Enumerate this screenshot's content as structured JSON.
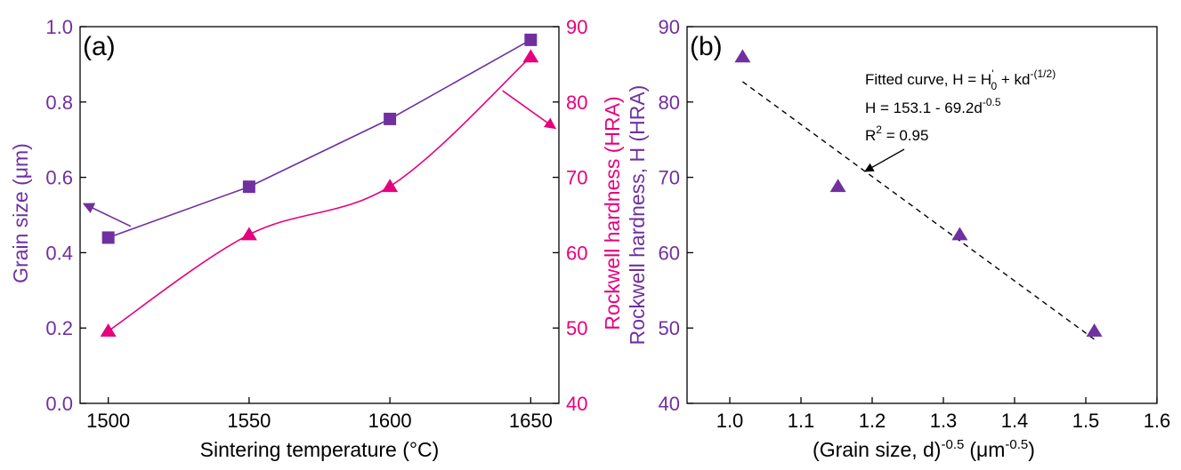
{
  "colors": {
    "purple": "#7030A0",
    "magenta": "#E6007E",
    "black": "#000000"
  },
  "chart_data": [
    {
      "panel": "(a)",
      "type": "line",
      "xlabel": "Sintering temperature (°C)",
      "ylabel_left": "Grain size (μm)",
      "ylabel_right": "Rockwell hardness (HRA)",
      "xlim": [
        1490,
        1660
      ],
      "ylim_left": [
        0.0,
        1.0
      ],
      "ylim_right": [
        40,
        90
      ],
      "x_ticks": [
        "1500",
        "1550",
        "1600",
        "1650"
      ],
      "y_left_ticks": [
        "0.0",
        "0.2",
        "0.4",
        "0.6",
        "0.8",
        "1.0"
      ],
      "y_right_ticks": [
        "40",
        "50",
        "60",
        "70",
        "80",
        "90"
      ],
      "grid": false,
      "series": [
        {
          "axis": "left",
          "marker": "square",
          "color": "#7030A0",
          "x": [
            1500,
            1550,
            1600,
            1650
          ],
          "y": [
            0.44,
            0.575,
            0.755,
            0.965
          ]
        },
        {
          "axis": "right",
          "marker": "triangle",
          "color": "#E6007E",
          "x": [
            1500,
            1550,
            1600,
            1650
          ],
          "y": [
            49.6,
            62.4,
            68.8,
            86.0
          ]
        }
      ]
    },
    {
      "panel": "(b)",
      "type": "scatter",
      "xlabel_main": "(Grain size, d)",
      "xlabel_exp1": "-0.5",
      "xlabel_unit": "(μm",
      "xlabel_exp2": "-0.5",
      "xlabel_close": ")",
      "ylabel": "Rockwell hardness, H (HRA)",
      "xlim": [
        0.94,
        1.6
      ],
      "ylim": [
        40,
        90
      ],
      "x_ticks": [
        "1.0",
        "1.1",
        "1.2",
        "1.3",
        "1.4",
        "1.5",
        "1.6"
      ],
      "y_ticks": [
        "40",
        "50",
        "60",
        "70",
        "80",
        "90"
      ],
      "grid": false,
      "points": {
        "marker": "triangle",
        "color": "#7030A0",
        "x": [
          1.018,
          1.152,
          1.323,
          1.512
        ],
        "y": [
          86.0,
          68.8,
          62.4,
          49.6
        ]
      },
      "fit": {
        "style": "dashed",
        "x": [
          1.018,
          1.512
        ],
        "y": [
          82.7,
          48.5
        ]
      },
      "annotation": {
        "line1_prefix": "Fitted curve, H = H",
        "line1_sup": "'",
        "line1_sub": "0",
        "line1_mid": " + kd",
        "line1_exp": "-(1/2)",
        "line2_prefix": "H = 153.1 - 69.2d",
        "line2_exp": "-0.5",
        "line3_prefix": "R",
        "line3_exp": "2",
        "line3_rest": " = 0.95"
      }
    }
  ]
}
